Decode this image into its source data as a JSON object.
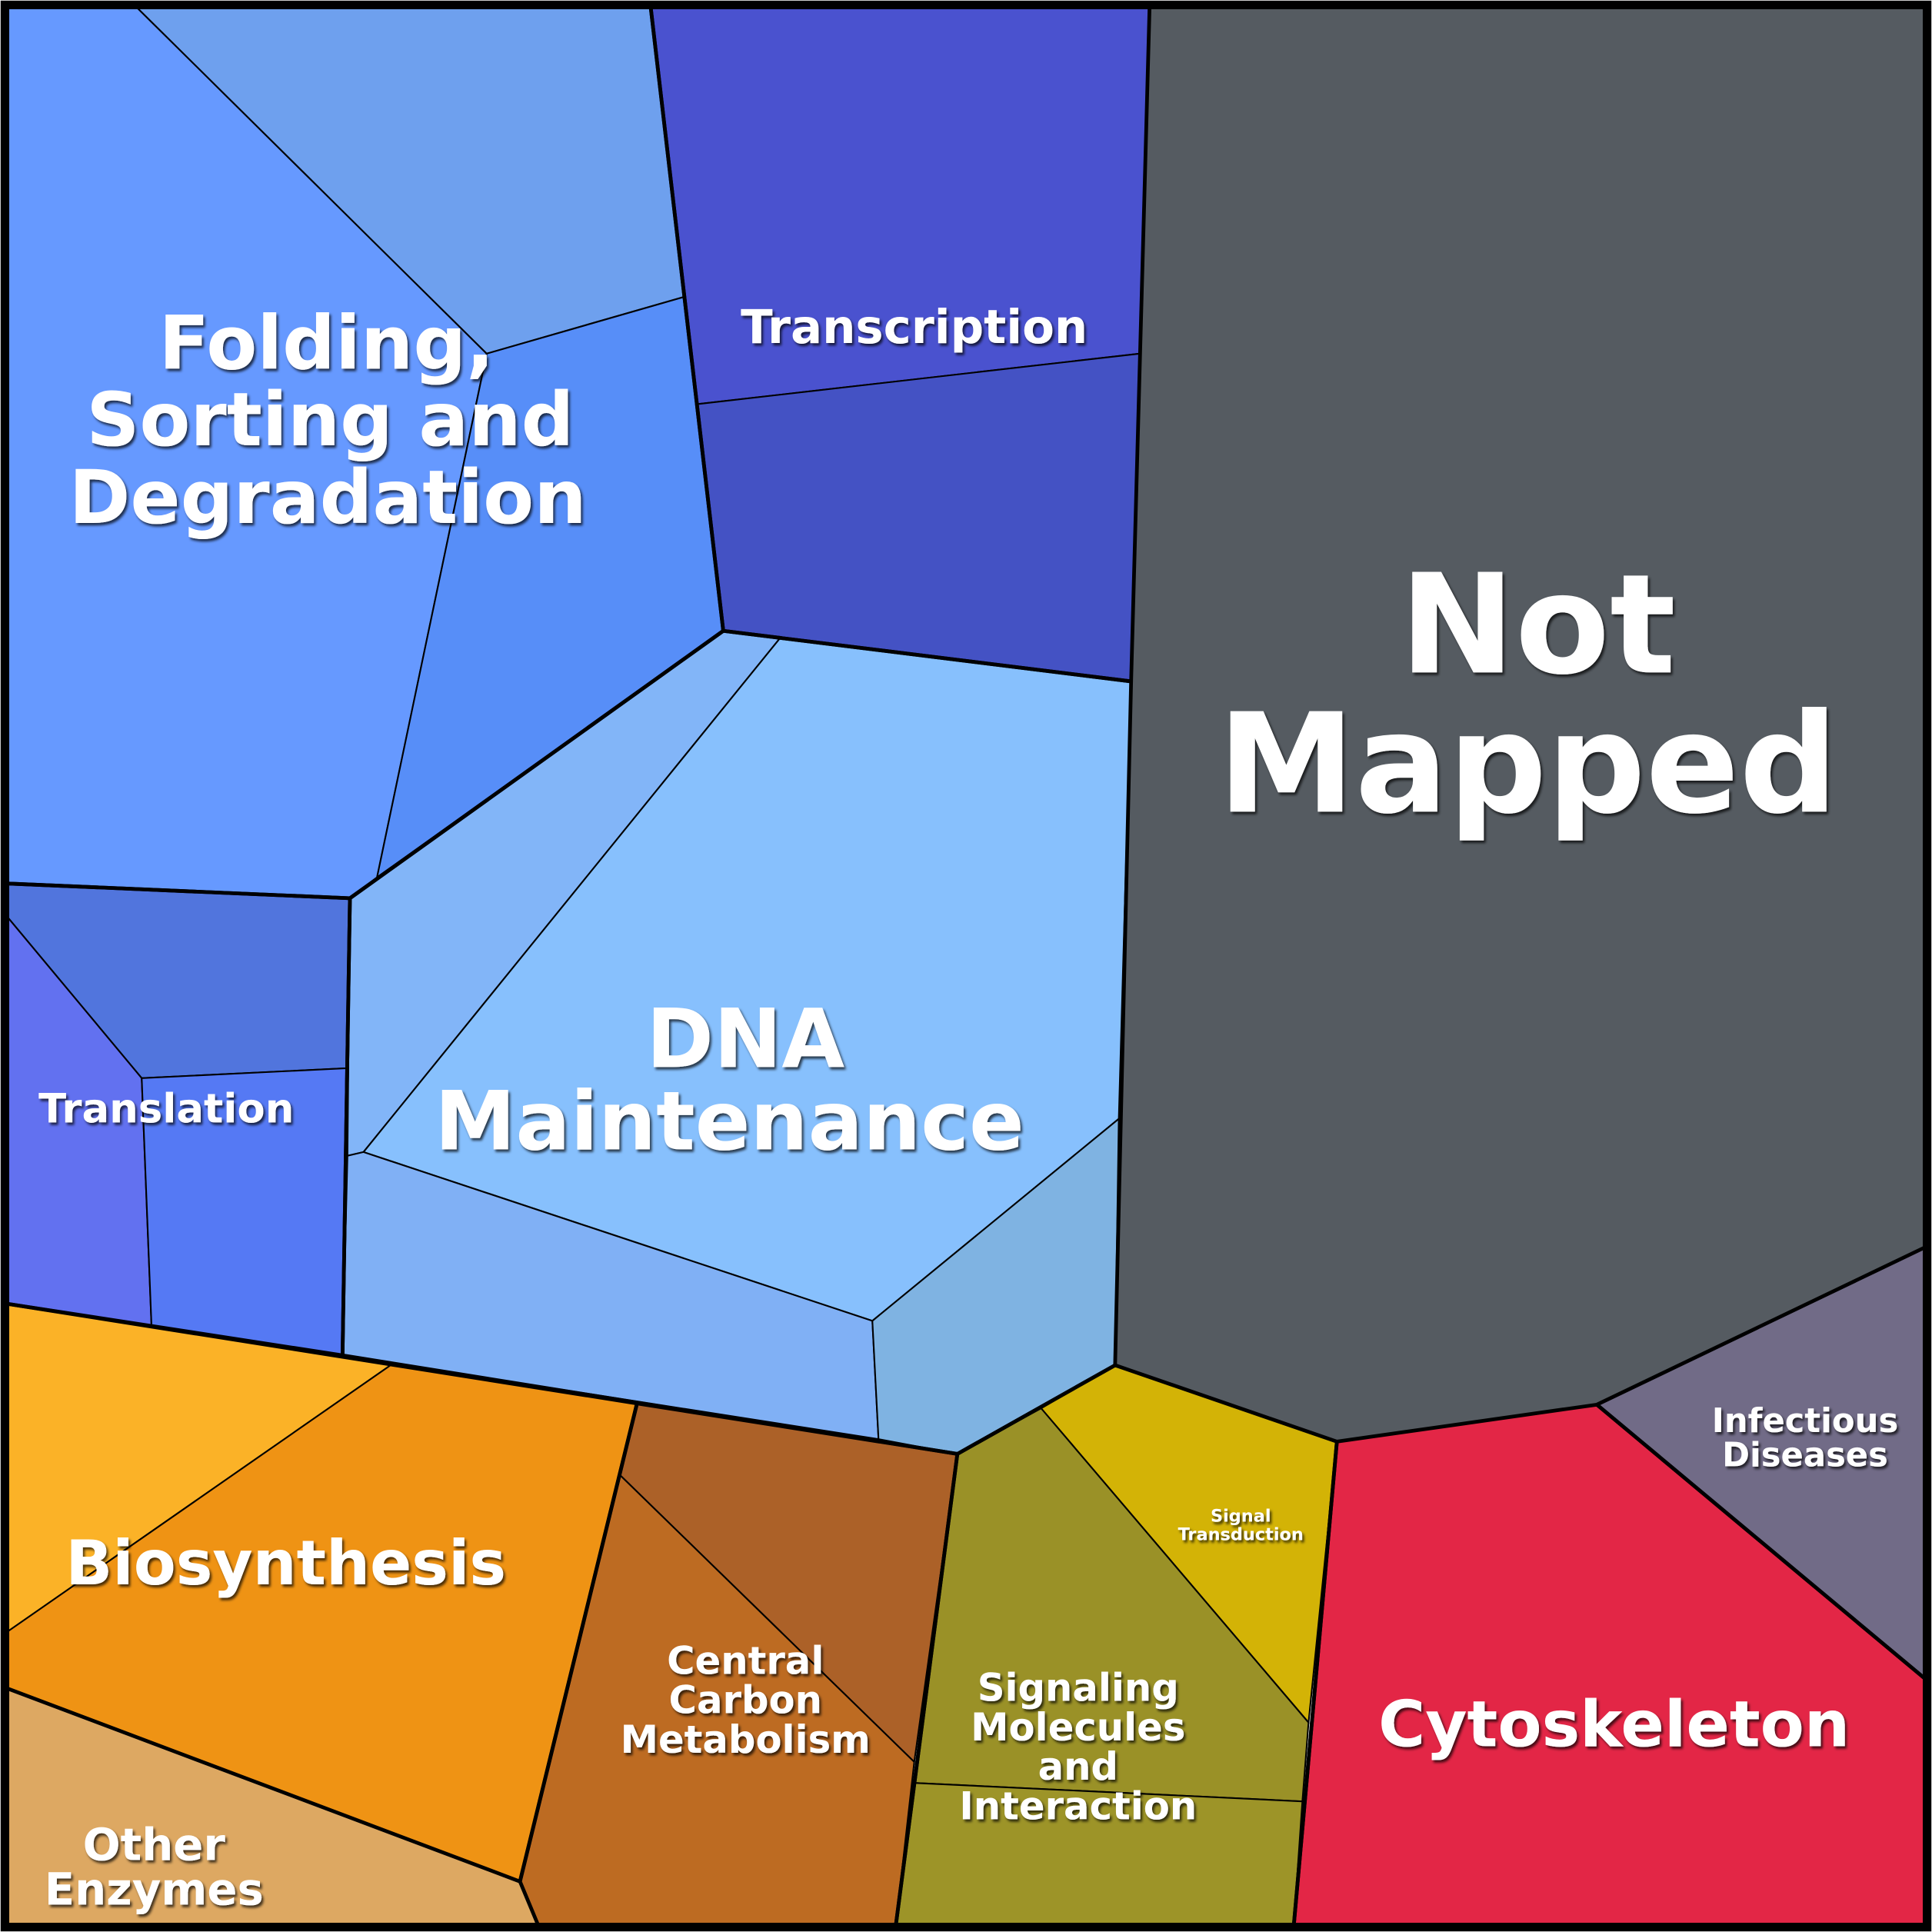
{
  "regions": [
    {
      "lines": [
        "Folding,",
        "Sorting and",
        "Degradation"
      ]
    },
    {
      "lines": [
        "Transcription"
      ]
    },
    {
      "lines": [
        "Not",
        "Mapped"
      ]
    },
    {
      "lines": [
        "DNA",
        "Maintenance"
      ]
    },
    {
      "lines": [
        "Translation"
      ]
    },
    {
      "lines": [
        "Biosynthesis"
      ]
    },
    {
      "lines": [
        "Central",
        "Carbon",
        "Metabolism"
      ]
    },
    {
      "lines": [
        "Other",
        "Enzymes"
      ]
    },
    {
      "lines": [
        "Signaling",
        "Molecules",
        "and",
        "Interaction"
      ]
    },
    {
      "lines": [
        "Signal",
        "Transduction"
      ]
    },
    {
      "lines": [
        "Infectious",
        "Diseases"
      ]
    },
    {
      "lines": [
        "Cytoskeleton"
      ]
    }
  ]
}
